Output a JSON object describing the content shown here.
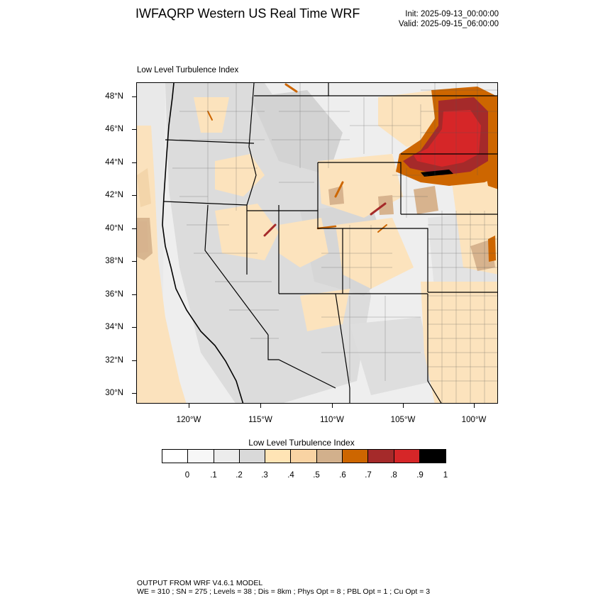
{
  "header": {
    "title": "IWFAQRP Western US Real Time WRF",
    "init": "Init: 2025-09-13_00:00:00",
    "valid": "Valid: 2025-09-15_06:00:00"
  },
  "map": {
    "subtitle": "Low Level Turbulence Index",
    "lat_labels": [
      "48°N",
      "46°N",
      "44°N",
      "42°N",
      "40°N",
      "38°N",
      "36°N",
      "34°N",
      "32°N",
      "30°N"
    ],
    "lon_labels": [
      "120°W",
      "115°W",
      "110°W",
      "105°W",
      "100°W"
    ]
  },
  "colorbar": {
    "title": "Low Level Turbulence Index",
    "labels": [
      "0",
      ".1",
      ".2",
      ".3",
      ".4",
      ".5",
      ".6",
      ".7",
      ".8",
      ".9",
      "1"
    ],
    "colors": [
      "#ffffff",
      "#f7f7f7",
      "#ececec",
      "#d9d9d9",
      "#ffe4b5",
      "#f9d3a3",
      "#d2b08c",
      "#cd6600",
      "#a52a2a",
      "#d62628",
      "#000000"
    ]
  },
  "footer": {
    "line1": "OUTPUT FROM WRF V4.6.1 MODEL",
    "line2": "WE = 310 ; SN = 275 ; Levels = 38 ; Dis = 8km ; Phys Opt = 8 ; PBL Opt = 1 ; Cu Opt = 3"
  }
}
